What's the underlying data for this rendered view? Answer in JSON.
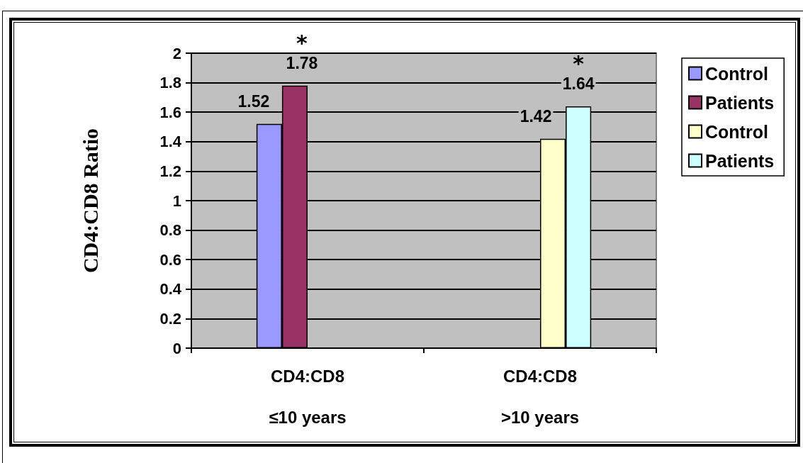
{
  "chart_data": {
    "type": "bar",
    "ylabel": "CD4:CD8 Ratio",
    "categories": [
      "CD4:CD8\n≤10 years",
      "CD4:CD8\n>10 years"
    ],
    "series": [
      {
        "name": "Control",
        "color": "#9999ff",
        "values": [
          1.52,
          null
        ]
      },
      {
        "name": "Patients",
        "color": "#993366",
        "values": [
          1.78,
          null
        ]
      },
      {
        "name": "Control",
        "color": "#ffffcc",
        "values": [
          null,
          1.42
        ]
      },
      {
        "name": "Patients",
        "color": "#ccffff",
        "values": [
          null,
          1.64
        ]
      }
    ],
    "ylim": [
      0,
      2
    ],
    "yticks": [
      0,
      0.2,
      0.4,
      0.6,
      0.8,
      1,
      1.2,
      1.4,
      1.6,
      1.8,
      2
    ],
    "grid": "y",
    "legend": "right",
    "data_labels": true,
    "annotations": [
      "*",
      "*"
    ]
  }
}
